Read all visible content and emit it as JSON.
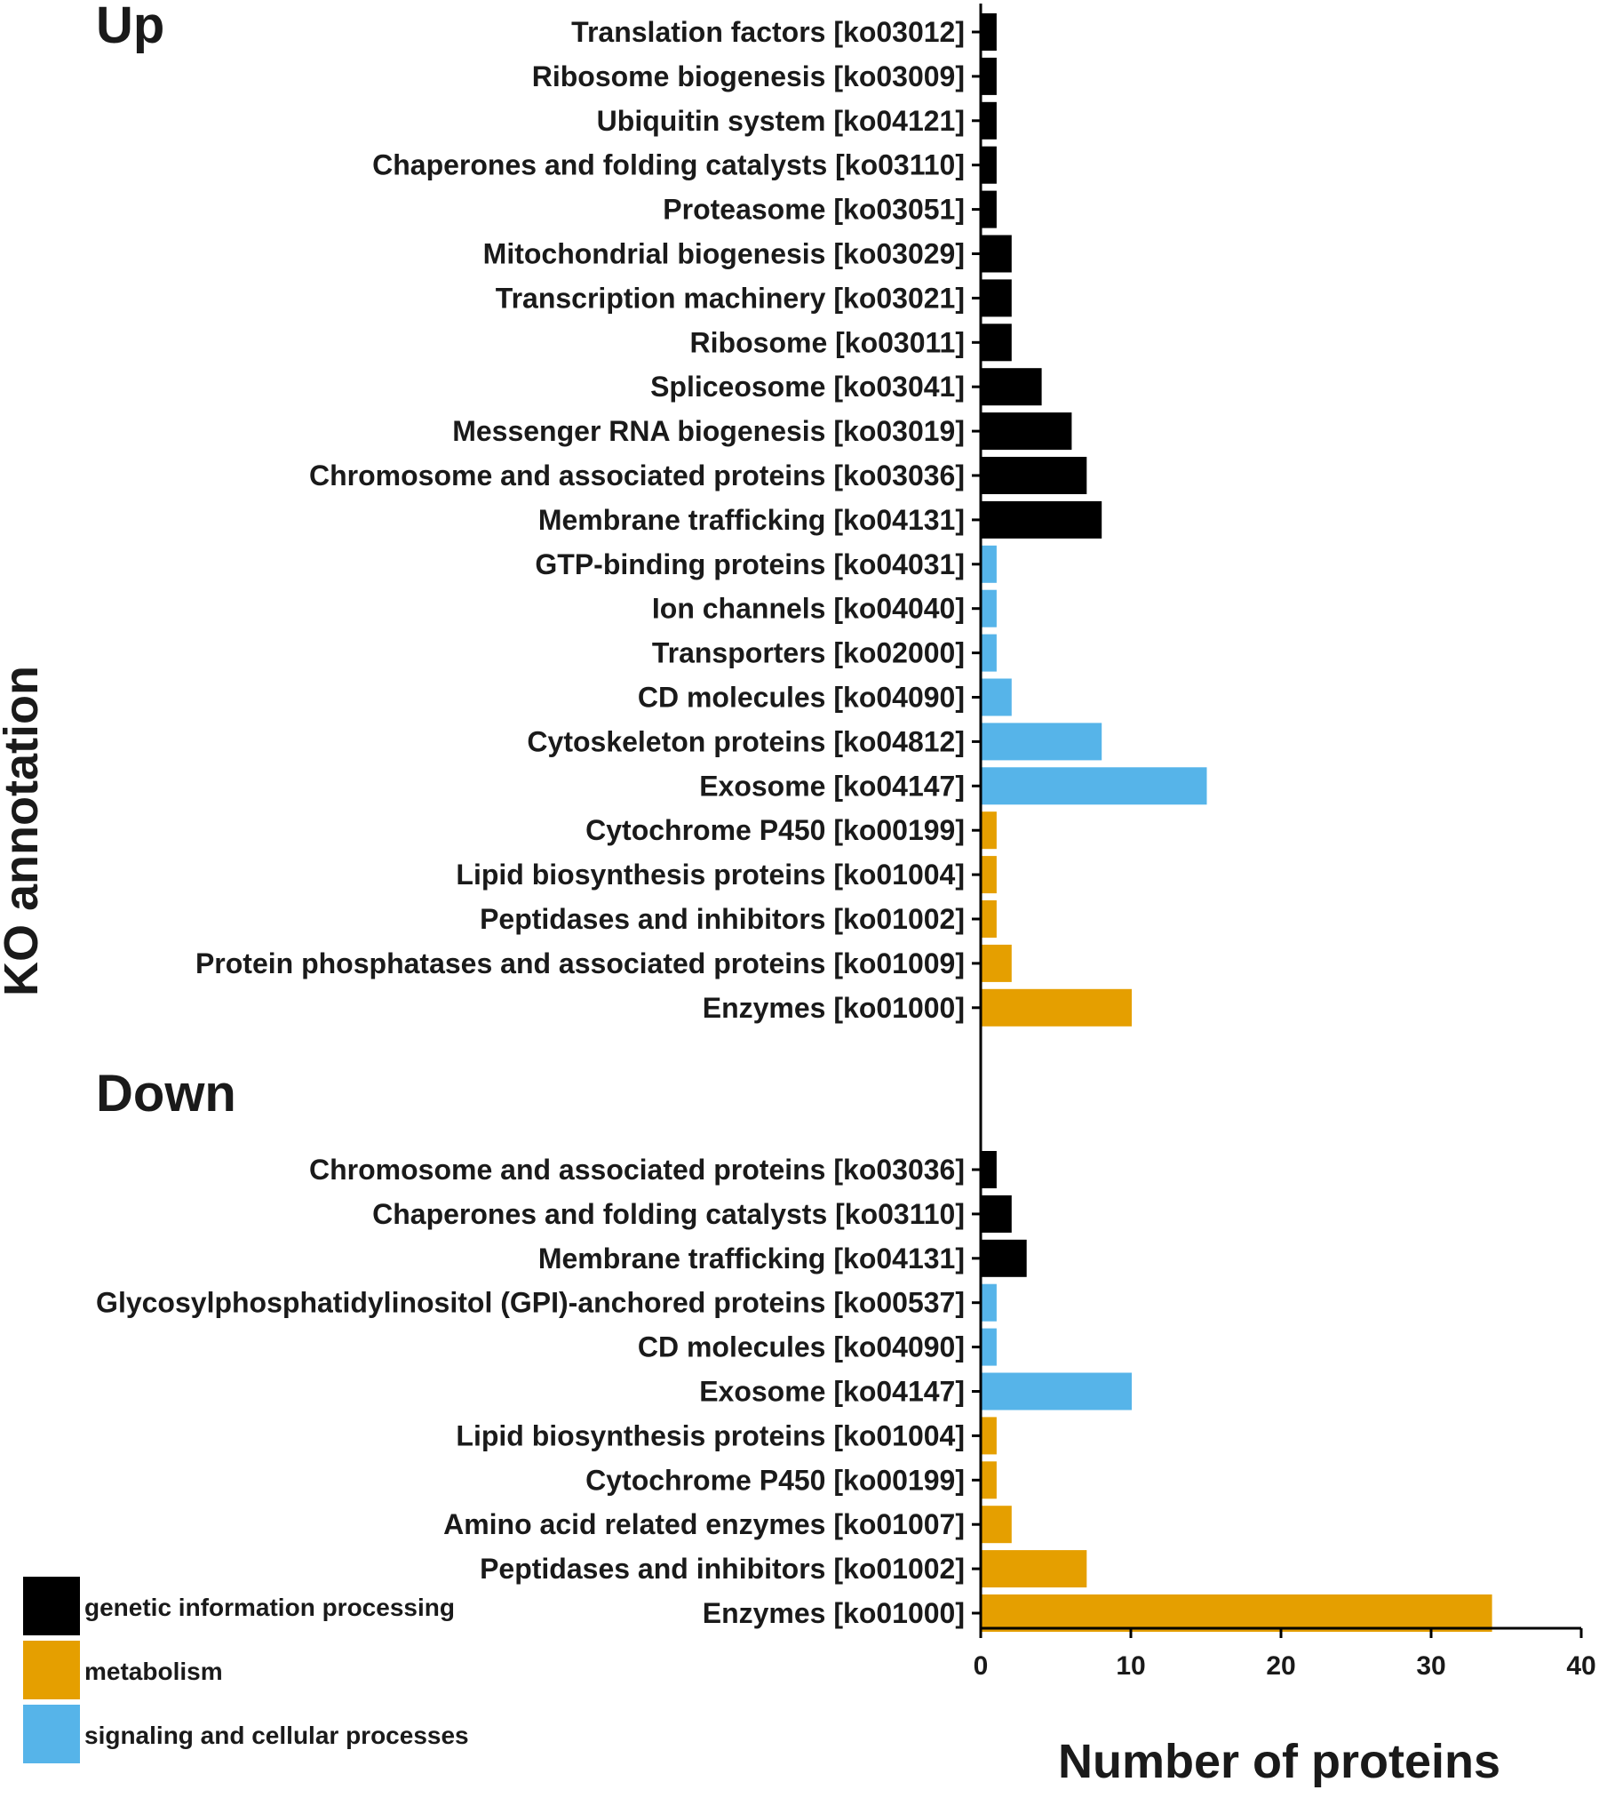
{
  "chart_data": {
    "type": "bar",
    "orientation": "horizontal",
    "xlabel": "Number of proteins",
    "ylabel": "KO annotation",
    "xlim": [
      0,
      40
    ],
    "xticks": [
      0,
      10,
      20,
      30,
      40
    ],
    "groups_colors": {
      "genetic information processing": "#000000",
      "metabolism": "#e59f00",
      "signaling and cellular processes": "#56b4e9"
    },
    "legend": [
      {
        "label": "genetic information processing",
        "color": "#000000"
      },
      {
        "label": "metabolism",
        "color": "#e59f00"
      },
      {
        "label": "signaling and cellular processes",
        "color": "#56b4e9"
      }
    ],
    "sections": [
      {
        "title": "Up",
        "bars": [
          {
            "label": "Translation factors [ko03012]",
            "value": 1,
            "group": "genetic information processing"
          },
          {
            "label": "Ribosome biogenesis [ko03009]",
            "value": 1,
            "group": "genetic information processing"
          },
          {
            "label": "Ubiquitin system [ko04121]",
            "value": 1,
            "group": "genetic information processing"
          },
          {
            "label": "Chaperones and folding catalysts [ko03110]",
            "value": 1,
            "group": "genetic information processing"
          },
          {
            "label": "Proteasome [ko03051]",
            "value": 1,
            "group": "genetic information processing"
          },
          {
            "label": "Mitochondrial biogenesis [ko03029]",
            "value": 2,
            "group": "genetic information processing"
          },
          {
            "label": "Transcription machinery [ko03021]",
            "value": 2,
            "group": "genetic information processing"
          },
          {
            "label": "Ribosome [ko03011]",
            "value": 2,
            "group": "genetic information processing"
          },
          {
            "label": "Spliceosome [ko03041]",
            "value": 4,
            "group": "genetic information processing"
          },
          {
            "label": "Messenger RNA biogenesis [ko03019]",
            "value": 6,
            "group": "genetic information processing"
          },
          {
            "label": "Chromosome and associated proteins [ko03036]",
            "value": 7,
            "group": "genetic information processing"
          },
          {
            "label": "Membrane trafficking [ko04131]",
            "value": 8,
            "group": "genetic information processing"
          },
          {
            "label": "GTP-binding proteins [ko04031]",
            "value": 1,
            "group": "signaling and cellular processes"
          },
          {
            "label": "Ion channels [ko04040]",
            "value": 1,
            "group": "signaling and cellular processes"
          },
          {
            "label": "Transporters [ko02000]",
            "value": 1,
            "group": "signaling and cellular processes"
          },
          {
            "label": "CD molecules [ko04090]",
            "value": 2,
            "group": "signaling and cellular processes"
          },
          {
            "label": "Cytoskeleton proteins [ko04812]",
            "value": 8,
            "group": "signaling and cellular processes"
          },
          {
            "label": "Exosome [ko04147]",
            "value": 15,
            "group": "signaling and cellular processes"
          },
          {
            "label": "Cytochrome P450 [ko00199]",
            "value": 1,
            "group": "metabolism"
          },
          {
            "label": "Lipid biosynthesis proteins [ko01004]",
            "value": 1,
            "group": "metabolism"
          },
          {
            "label": "Peptidases and inhibitors [ko01002]",
            "value": 1,
            "group": "metabolism"
          },
          {
            "label": "Protein phosphatases and associated proteins [ko01009]",
            "value": 2,
            "group": "metabolism"
          },
          {
            "label": "Enzymes [ko01000]",
            "value": 10,
            "group": "metabolism"
          }
        ]
      },
      {
        "title": "Down",
        "bars": [
          {
            "label": "Chromosome and associated proteins [ko03036]",
            "value": 1,
            "group": "genetic information processing"
          },
          {
            "label": "Chaperones and folding catalysts [ko03110]",
            "value": 2,
            "group": "genetic information processing"
          },
          {
            "label": "Membrane trafficking [ko04131]",
            "value": 3,
            "group": "genetic information processing"
          },
          {
            "label": "Glycosylphosphatidylinositol (GPI)-anchored proteins [ko00537]",
            "value": 1,
            "group": "signaling and cellular processes"
          },
          {
            "label": "CD molecules [ko04090]",
            "value": 1,
            "group": "signaling and cellular processes"
          },
          {
            "label": "Exosome [ko04147]",
            "value": 10,
            "group": "signaling and cellular processes"
          },
          {
            "label": "Lipid biosynthesis proteins [ko01004]",
            "value": 1,
            "group": "metabolism"
          },
          {
            "label": "Cytochrome P450 [ko00199]",
            "value": 1,
            "group": "metabolism"
          },
          {
            "label": "Amino acid related enzymes [ko01007]",
            "value": 2,
            "group": "metabolism"
          },
          {
            "label": "Peptidases and inhibitors [ko01002]",
            "value": 7,
            "group": "metabolism"
          },
          {
            "label": "Enzymes [ko01000]",
            "value": 34,
            "group": "metabolism"
          }
        ]
      }
    ]
  }
}
